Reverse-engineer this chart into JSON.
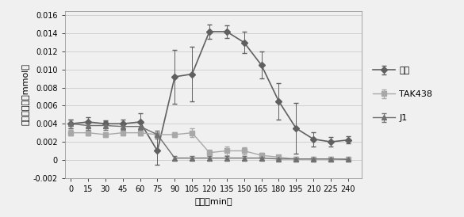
{
  "title": "",
  "xlabel": "时间（min）",
  "ylabel": "血浆干浓度（mmol）",
  "xlim": [
    -5,
    252
  ],
  "ylim": [
    -0.002,
    0.0165
  ],
  "yticks": [
    -0.002,
    0.0,
    0.002,
    0.004,
    0.006,
    0.008,
    0.01,
    0.012,
    0.014,
    0.016
  ],
  "xticks": [
    0,
    15,
    30,
    45,
    60,
    75,
    90,
    105,
    120,
    135,
    150,
    165,
    180,
    195,
    210,
    225,
    240
  ],
  "series": {
    "kongbai": {
      "label": "空白",
      "color": "#606060",
      "marker": "D",
      "markersize": 4,
      "linestyle": "-",
      "linewidth": 1.2,
      "x": [
        0,
        15,
        30,
        45,
        60,
        75,
        90,
        105,
        120,
        135,
        150,
        165,
        180,
        195,
        210,
        225,
        240
      ],
      "y": [
        0.004,
        0.0042,
        0.004,
        0.004,
        0.0042,
        0.001,
        0.0092,
        0.0095,
        0.0142,
        0.0142,
        0.013,
        0.0105,
        0.0065,
        0.0035,
        0.0023,
        0.002,
        0.0022
      ],
      "yerr": [
        0.0005,
        0.0005,
        0.0004,
        0.0005,
        0.001,
        0.0015,
        0.003,
        0.003,
        0.0008,
        0.0007,
        0.0012,
        0.0015,
        0.002,
        0.0028,
        0.0008,
        0.0005,
        0.0004
      ]
    },
    "TAK438": {
      "label": "TAK438",
      "color": "#a8a8a8",
      "marker": "s",
      "markersize": 4,
      "linestyle": "-",
      "linewidth": 1.0,
      "x": [
        0,
        15,
        30,
        45,
        60,
        75,
        90,
        105,
        120,
        135,
        150,
        165,
        180,
        195,
        210,
        225,
        240
      ],
      "y": [
        0.003,
        0.003,
        0.0028,
        0.003,
        0.003,
        0.0028,
        0.0028,
        0.003,
        0.0008,
        0.001,
        0.001,
        0.0005,
        0.0003,
        0.0001,
        0.0001,
        0.0001,
        0.0001
      ],
      "yerr": [
        0.0003,
        0.0003,
        0.0003,
        0.0003,
        0.0003,
        0.0003,
        0.0003,
        0.0005,
        0.0003,
        0.0005,
        0.0004,
        0.0003,
        0.0002,
        0.0002,
        0.0002,
        0.0002,
        0.0002
      ]
    },
    "J1": {
      "label": "J1",
      "color": "#707070",
      "marker": "^",
      "markersize": 4,
      "linestyle": "-",
      "linewidth": 1.0,
      "x": [
        0,
        15,
        30,
        45,
        60,
        75,
        90,
        105,
        120,
        135,
        150,
        165,
        180,
        195,
        210,
        225,
        240
      ],
      "y": [
        0.004,
        0.0038,
        0.0038,
        0.0037,
        0.0037,
        0.0028,
        0.0002,
        0.0002,
        0.0002,
        0.0002,
        0.0002,
        0.0002,
        0.0001,
        0.0001,
        0.0001,
        0.0001,
        5e-05
      ],
      "yerr": [
        0.0005,
        0.0005,
        0.0005,
        0.0004,
        0.0004,
        0.0004,
        0.0002,
        0.0002,
        0.0002,
        0.0002,
        0.0002,
        0.0002,
        0.0001,
        0.0001,
        0.0001,
        0.0001,
        0.0001
      ]
    }
  },
  "background_color": "#f0f0f0",
  "plot_bg_color": "#f0f0f0",
  "grid_color": "#d0d0d0",
  "legend_fontsize": 8,
  "axis_fontsize": 8,
  "tick_fontsize": 7
}
